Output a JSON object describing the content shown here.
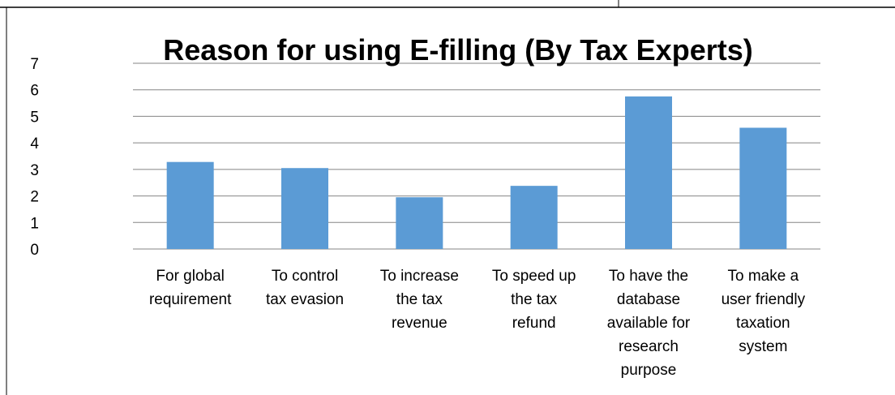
{
  "chart_data": {
    "type": "bar",
    "title": "Reason for using E-filling (By Tax Experts)",
    "categories": [
      [
        "For global",
        "requirement"
      ],
      [
        "To control",
        "tax evasion"
      ],
      [
        "To increase",
        "the tax",
        "revenue"
      ],
      [
        "To speed up",
        "the tax",
        "refund"
      ],
      [
        "To have the",
        "database",
        "available for",
        "research",
        "purpose"
      ],
      [
        "To make a",
        "user friendly",
        "taxation",
        "system"
      ]
    ],
    "values": [
      3.28,
      3.05,
      1.95,
      2.38,
      5.75,
      4.57
    ],
    "xlabel": "",
    "ylabel": "",
    "ylim": [
      0,
      7
    ],
    "yticks": [
      "0",
      "1",
      "2",
      "3",
      "4",
      "5",
      "6",
      "7"
    ],
    "grid": true,
    "legend": "none",
    "colors": {
      "bar": "#5B9BD5",
      "grid": "#858585",
      "axis": "#858585",
      "frame": "#000000"
    }
  }
}
